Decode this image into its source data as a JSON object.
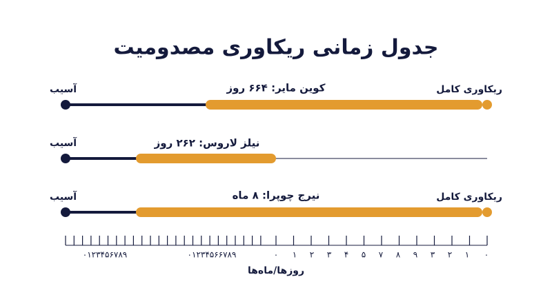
{
  "header": {
    "title": "جدول زمانی ریکاوری مصدومیت"
  },
  "rows": [
    {
      "start": "آسیب",
      "end": "ریکاوری کامل",
      "caption": "کوین مایر: ۶۶۴ روز"
    },
    {
      "start": "آسیب",
      "caption": "نیلز لاروس: ۲۶۲ روز"
    },
    {
      "start": "آسیب",
      "end": "ریکاوری کامل",
      "caption": "نیرج چوپرا: ۸ ماه"
    }
  ],
  "axis": {
    "ticks": [
      "۰۱۲۳۴۵۶۷۸۹",
      "۰۱۲۳۴۵۶۶۷۸۹",
      "۰",
      "۱",
      "۲",
      "۳",
      "۴",
      "۵",
      "۷",
      "۸",
      "۹",
      "۳",
      "۲",
      "۱",
      "۰"
    ],
    "title": "روزها/ماه‌ها"
  }
}
